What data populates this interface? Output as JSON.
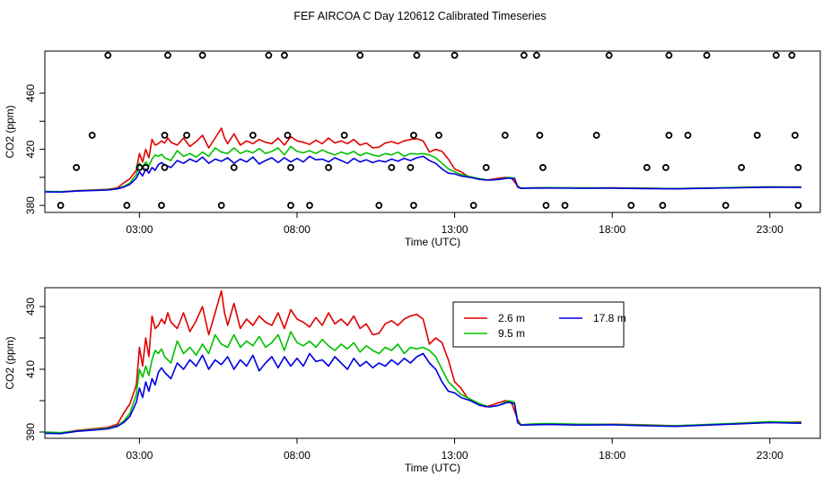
{
  "title": "FEF AIRCOA C  Day 120612  Calibrated Timeseries",
  "chart_data": [
    {
      "type": "line",
      "ylabel": "CO2 (ppm)",
      "xlabel": "Time (UTC)",
      "xlim": [
        0.0,
        24.6
      ],
      "ylim": [
        375,
        490
      ],
      "xticks": [
        3,
        8,
        13,
        18,
        23
      ],
      "xtick_labels": [
        "03:00",
        "08:00",
        "13:00",
        "18:00",
        "23:00"
      ],
      "yticks": [
        380,
        400,
        420,
        440,
        460
      ],
      "ytick_labels": [
        "380",
        "",
        "420",
        "",
        "460"
      ],
      "colors": {
        "2.6 m": "#e00000",
        "9.5 m": "#00c000",
        "17.8 m": "#0000e0",
        "calibration": "#000000"
      },
      "calibration_points": [
        [
          0.5,
          380
        ],
        [
          1.0,
          407
        ],
        [
          1.5,
          430
        ],
        [
          2.0,
          487
        ],
        [
          2.6,
          380
        ],
        [
          3.0,
          407
        ],
        [
          3.2,
          407
        ],
        [
          3.7,
          380
        ],
        [
          3.8,
          430
        ],
        [
          3.8,
          407
        ],
        [
          3.9,
          487
        ],
        [
          4.5,
          430
        ],
        [
          5.0,
          487
        ],
        [
          5.6,
          380
        ],
        [
          6.0,
          407
        ],
        [
          6.6,
          430
        ],
        [
          7.1,
          487
        ],
        [
          7.6,
          487
        ],
        [
          7.7,
          430
        ],
        [
          7.8,
          380
        ],
        [
          7.8,
          407
        ],
        [
          8.4,
          380
        ],
        [
          9.0,
          407
        ],
        [
          9.5,
          430
        ],
        [
          10.0,
          487
        ],
        [
          10.6,
          380
        ],
        [
          11.0,
          407
        ],
        [
          11.6,
          407
        ],
        [
          11.7,
          380
        ],
        [
          11.7,
          430
        ],
        [
          11.8,
          487
        ],
        [
          12.5,
          430
        ],
        [
          13.0,
          487
        ],
        [
          13.6,
          380
        ],
        [
          14.0,
          407
        ],
        [
          14.6,
          430
        ],
        [
          15.2,
          487
        ],
        [
          15.6,
          487
        ],
        [
          15.7,
          430
        ],
        [
          15.8,
          407
        ],
        [
          15.9,
          380
        ],
        [
          16.5,
          380
        ],
        [
          17.5,
          430
        ],
        [
          17.9,
          487
        ],
        [
          18.6,
          380
        ],
        [
          19.1,
          407
        ],
        [
          19.6,
          380
        ],
        [
          19.7,
          407
        ],
        [
          19.8,
          487
        ],
        [
          19.8,
          430
        ],
        [
          20.4,
          430
        ],
        [
          21.0,
          487
        ],
        [
          21.6,
          380
        ],
        [
          22.1,
          407
        ],
        [
          22.6,
          430
        ],
        [
          23.2,
          487
        ],
        [
          23.7,
          487
        ],
        [
          23.8,
          430
        ],
        [
          23.9,
          407
        ],
        [
          23.9,
          380
        ]
      ]
    },
    {
      "type": "line",
      "ylabel": "CO2 (ppm)",
      "xlabel": "Time (UTC)",
      "xlim": [
        0.0,
        24.6
      ],
      "ylim": [
        388,
        436
      ],
      "xticks": [
        3,
        8,
        13,
        18,
        23
      ],
      "xtick_labels": [
        "03:00",
        "08:00",
        "13:00",
        "18:00",
        "23:00"
      ],
      "yticks": [
        390,
        400,
        410,
        420,
        430
      ],
      "ytick_labels": [
        "390",
        "",
        "410",
        "",
        "430"
      ],
      "legend": {
        "position": "top-right-inside",
        "entries": [
          {
            "label": "2.6 m",
            "color": "#e00000"
          },
          {
            "label": "17.8 m",
            "color": "#0000e0"
          },
          {
            "label": "9.5 m",
            "color": "#00c000"
          }
        ]
      }
    }
  ],
  "series": [
    {
      "name": "2.6 m",
      "color": "#e00000",
      "points": [
        [
          0.0,
          389.8
        ],
        [
          0.5,
          389.7
        ],
        [
          1.0,
          390.5
        ],
        [
          1.5,
          391.0
        ],
        [
          2.0,
          391.5
        ],
        [
          2.3,
          392.5
        ],
        [
          2.5,
          396.0
        ],
        [
          2.7,
          399.0
        ],
        [
          2.9,
          405.0
        ],
        [
          3.0,
          417.0
        ],
        [
          3.1,
          411.0
        ],
        [
          3.2,
          420.0
        ],
        [
          3.3,
          414.0
        ],
        [
          3.4,
          427.0
        ],
        [
          3.5,
          423.0
        ],
        [
          3.6,
          424.0
        ],
        [
          3.7,
          426.0
        ],
        [
          3.8,
          424.5
        ],
        [
          3.9,
          428.0
        ],
        [
          4.0,
          425.0
        ],
        [
          4.2,
          423.0
        ],
        [
          4.4,
          428.0
        ],
        [
          4.6,
          422.0
        ],
        [
          4.8,
          425.5
        ],
        [
          5.0,
          430.0
        ],
        [
          5.2,
          421.0
        ],
        [
          5.4,
          428.0
        ],
        [
          5.6,
          435.0
        ],
        [
          5.7,
          428.0
        ],
        [
          5.8,
          424.0
        ],
        [
          6.0,
          431.0
        ],
        [
          6.2,
          423.0
        ],
        [
          6.4,
          426.0
        ],
        [
          6.6,
          424.0
        ],
        [
          6.8,
          427.0
        ],
        [
          7.0,
          425.0
        ],
        [
          7.2,
          424.0
        ],
        [
          7.4,
          428.0
        ],
        [
          7.6,
          423.0
        ],
        [
          7.8,
          429.0
        ],
        [
          8.0,
          426.0
        ],
        [
          8.2,
          425.0
        ],
        [
          8.4,
          423.5
        ],
        [
          8.6,
          426.5
        ],
        [
          8.8,
          424.0
        ],
        [
          9.0,
          428.0
        ],
        [
          9.2,
          424.5
        ],
        [
          9.4,
          426.0
        ],
        [
          9.6,
          424.0
        ],
        [
          9.8,
          427.0
        ],
        [
          10.0,
          423.0
        ],
        [
          10.2,
          424.5
        ],
        [
          10.4,
          421.0
        ],
        [
          10.6,
          421.5
        ],
        [
          10.8,
          424.5
        ],
        [
          11.0,
          425.5
        ],
        [
          11.2,
          424.0
        ],
        [
          11.4,
          426.0
        ],
        [
          11.6,
          427.0
        ],
        [
          11.8,
          427.5
        ],
        [
          12.0,
          426.0
        ],
        [
          12.2,
          418.0
        ],
        [
          12.4,
          420.0
        ],
        [
          12.6,
          418.5
        ],
        [
          12.8,
          413.0
        ],
        [
          13.0,
          406.0
        ],
        [
          13.2,
          404.0
        ],
        [
          13.4,
          401.0
        ],
        [
          13.7,
          399.0
        ],
        [
          14.0,
          398.0
        ],
        [
          14.3,
          399.0
        ],
        [
          14.6,
          400.0
        ],
        [
          14.8,
          399.5
        ],
        [
          15.0,
          394.0
        ],
        [
          15.1,
          392.3
        ],
        [
          15.5,
          392.5
        ],
        [
          16.0,
          392.5
        ],
        [
          17.0,
          392.4
        ],
        [
          18.0,
          392.5
        ],
        [
          19.0,
          392.3
        ],
        [
          20.0,
          392.0
        ],
        [
          21.0,
          392.3
        ],
        [
          22.0,
          392.7
        ],
        [
          23.0,
          393.0
        ],
        [
          24.0,
          393.2
        ]
      ]
    },
    {
      "name": "9.5 m",
      "color": "#00c000",
      "points": [
        [
          0.0,
          390.0
        ],
        [
          0.5,
          389.8
        ],
        [
          1.0,
          390.3
        ],
        [
          1.5,
          390.8
        ],
        [
          2.0,
          391.2
        ],
        [
          2.3,
          392.0
        ],
        [
          2.5,
          393.5
        ],
        [
          2.7,
          396.0
        ],
        [
          2.9,
          402.0
        ],
        [
          3.0,
          410.0
        ],
        [
          3.1,
          407.5
        ],
        [
          3.2,
          411.0
        ],
        [
          3.3,
          408.0
        ],
        [
          3.4,
          413.0
        ],
        [
          3.5,
          416.0
        ],
        [
          3.6,
          415.0
        ],
        [
          3.7,
          416.5
        ],
        [
          3.8,
          414.0
        ],
        [
          4.0,
          412.0
        ],
        [
          4.2,
          419.0
        ],
        [
          4.4,
          415.0
        ],
        [
          4.6,
          417.0
        ],
        [
          4.8,
          414.5
        ],
        [
          5.0,
          418.0
        ],
        [
          5.2,
          415.0
        ],
        [
          5.4,
          421.0
        ],
        [
          5.6,
          418.0
        ],
        [
          5.8,
          417.0
        ],
        [
          6.0,
          421.0
        ],
        [
          6.2,
          417.0
        ],
        [
          6.4,
          419.0
        ],
        [
          6.6,
          417.5
        ],
        [
          6.8,
          420.5
        ],
        [
          7.0,
          417.0
        ],
        [
          7.2,
          418.5
        ],
        [
          7.4,
          421.0
        ],
        [
          7.6,
          416.0
        ],
        [
          7.8,
          422.0
        ],
        [
          8.0,
          418.5
        ],
        [
          8.2,
          417.5
        ],
        [
          8.4,
          419.0
        ],
        [
          8.6,
          417.0
        ],
        [
          8.8,
          419.5
        ],
        [
          9.0,
          417.5
        ],
        [
          9.2,
          416.0
        ],
        [
          9.4,
          418.0
        ],
        [
          9.6,
          416.5
        ],
        [
          9.8,
          418.5
        ],
        [
          10.0,
          415.5
        ],
        [
          10.2,
          417.5
        ],
        [
          10.4,
          416.0
        ],
        [
          10.6,
          415.0
        ],
        [
          10.8,
          417.0
        ],
        [
          11.0,
          416.0
        ],
        [
          11.2,
          418.0
        ],
        [
          11.4,
          415.0
        ],
        [
          11.6,
          417.0
        ],
        [
          11.8,
          416.5
        ],
        [
          12.0,
          417.0
        ],
        [
          12.2,
          416.0
        ],
        [
          12.4,
          414.0
        ],
        [
          12.6,
          410.0
        ],
        [
          12.8,
          406.0
        ],
        [
          13.0,
          404.0
        ],
        [
          13.2,
          402.0
        ],
        [
          13.5,
          400.5
        ],
        [
          13.8,
          399.0
        ],
        [
          14.1,
          398.0
        ],
        [
          14.4,
          398.5
        ],
        [
          14.7,
          400.0
        ],
        [
          14.9,
          399.5
        ],
        [
          15.0,
          393.5
        ],
        [
          15.1,
          392.3
        ],
        [
          15.5,
          392.6
        ],
        [
          16.0,
          392.7
        ],
        [
          17.0,
          392.5
        ],
        [
          18.0,
          392.4
        ],
        [
          19.0,
          392.2
        ],
        [
          20.0,
          392.0
        ],
        [
          21.0,
          392.4
        ],
        [
          22.0,
          392.8
        ],
        [
          23.0,
          393.3
        ],
        [
          24.0,
          393.0
        ]
      ]
    },
    {
      "name": "17.8 m",
      "color": "#0000e0",
      "points": [
        [
          0.0,
          389.6
        ],
        [
          0.5,
          389.5
        ],
        [
          1.0,
          390.2
        ],
        [
          1.5,
          390.6
        ],
        [
          2.0,
          391.0
        ],
        [
          2.3,
          391.8
        ],
        [
          2.5,
          393.0
        ],
        [
          2.7,
          395.0
        ],
        [
          2.9,
          399.5
        ],
        [
          3.0,
          404.0
        ],
        [
          3.1,
          401.0
        ],
        [
          3.2,
          406.0
        ],
        [
          3.3,
          403.0
        ],
        [
          3.4,
          407.0
        ],
        [
          3.5,
          405.0
        ],
        [
          3.6,
          409.0
        ],
        [
          3.7,
          410.5
        ],
        [
          3.8,
          409.0
        ],
        [
          4.0,
          407.0
        ],
        [
          4.2,
          412.0
        ],
        [
          4.4,
          410.0
        ],
        [
          4.6,
          413.0
        ],
        [
          4.8,
          411.0
        ],
        [
          5.0,
          414.5
        ],
        [
          5.2,
          410.0
        ],
        [
          5.4,
          413.0
        ],
        [
          5.6,
          411.5
        ],
        [
          5.8,
          414.0
        ],
        [
          6.0,
          410.0
        ],
        [
          6.2,
          413.0
        ],
        [
          6.4,
          411.0
        ],
        [
          6.6,
          414.5
        ],
        [
          6.8,
          409.5
        ],
        [
          7.0,
          412.0
        ],
        [
          7.2,
          414.0
        ],
        [
          7.4,
          410.5
        ],
        [
          7.6,
          414.0
        ],
        [
          7.8,
          411.0
        ],
        [
          8.0,
          413.5
        ],
        [
          8.2,
          411.0
        ],
        [
          8.4,
          415.0
        ],
        [
          8.6,
          412.5
        ],
        [
          8.8,
          413.0
        ],
        [
          9.0,
          411.0
        ],
        [
          9.2,
          414.0
        ],
        [
          9.4,
          412.0
        ],
        [
          9.6,
          410.0
        ],
        [
          9.8,
          413.5
        ],
        [
          10.0,
          411.0
        ],
        [
          10.2,
          412.5
        ],
        [
          10.4,
          410.5
        ],
        [
          10.6,
          412.0
        ],
        [
          10.8,
          411.0
        ],
        [
          11.0,
          413.0
        ],
        [
          11.2,
          411.5
        ],
        [
          11.4,
          413.5
        ],
        [
          11.6,
          412.0
        ],
        [
          11.8,
          414.0
        ],
        [
          12.0,
          415.0
        ],
        [
          12.2,
          412.0
        ],
        [
          12.4,
          410.0
        ],
        [
          12.6,
          406.0
        ],
        [
          12.8,
          403.0
        ],
        [
          13.0,
          402.5
        ],
        [
          13.2,
          401.0
        ],
        [
          13.5,
          400.0
        ],
        [
          13.8,
          398.5
        ],
        [
          14.1,
          398.0
        ],
        [
          14.4,
          398.5
        ],
        [
          14.7,
          399.5
        ],
        [
          14.9,
          399.0
        ],
        [
          15.0,
          393.0
        ],
        [
          15.1,
          392.2
        ],
        [
          15.5,
          392.3
        ],
        [
          16.0,
          392.4
        ],
        [
          17.0,
          392.2
        ],
        [
          18.0,
          392.3
        ],
        [
          19.0,
          392.0
        ],
        [
          20.0,
          391.8
        ],
        [
          21.0,
          392.2
        ],
        [
          22.0,
          392.6
        ],
        [
          23.0,
          393.0
        ],
        [
          24.0,
          392.8
        ]
      ]
    }
  ]
}
